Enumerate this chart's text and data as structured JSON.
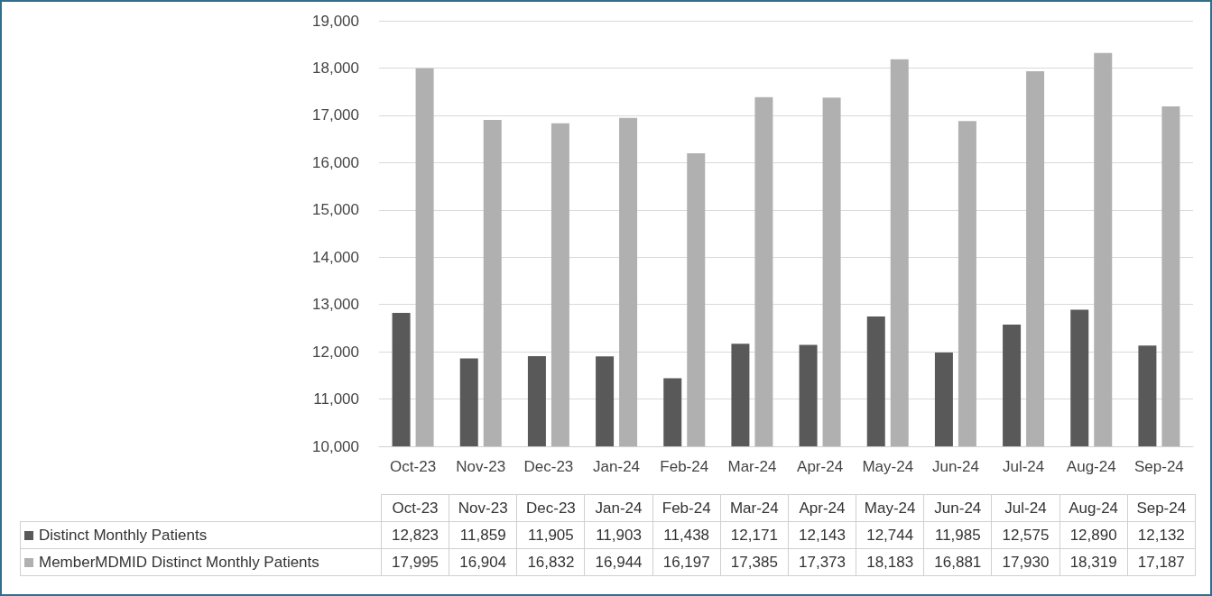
{
  "chart_data": {
    "type": "bar",
    "categories": [
      "Oct-23",
      "Nov-23",
      "Dec-23",
      "Jan-24",
      "Feb-24",
      "Mar-24",
      "Apr-24",
      "May-24",
      "Jun-24",
      "Jul-24",
      "Aug-24",
      "Sep-24"
    ],
    "series": [
      {
        "name": "Distinct Monthly Patients",
        "color": "#595959",
        "values": [
          12823,
          11859,
          11905,
          11903,
          11438,
          12171,
          12143,
          12744,
          11985,
          12575,
          12890,
          12132
        ],
        "value_labels": [
          "12,823",
          "11,859",
          "11,905",
          "11,903",
          "11,438",
          "12,171",
          "12,143",
          "12,744",
          "11,985",
          "12,575",
          "12,890",
          "12,132"
        ]
      },
      {
        "name": "MemberMDMID Distinct Monthly Patients",
        "color": "#b0b0b0",
        "values": [
          17995,
          16904,
          16832,
          16944,
          16197,
          17385,
          17373,
          18183,
          16881,
          17930,
          18319,
          17187
        ],
        "value_labels": [
          "17,995",
          "16,904",
          "16,832",
          "16,944",
          "16,197",
          "17,385",
          "17,373",
          "18,183",
          "16,881",
          "17,930",
          "18,319",
          "17,187"
        ]
      }
    ],
    "ylim": [
      10000,
      19000
    ],
    "yticks": [
      {
        "value": 10000,
        "label": "10,000"
      },
      {
        "value": 11000,
        "label": "11,000"
      },
      {
        "value": 12000,
        "label": "12,000"
      },
      {
        "value": 13000,
        "label": "13,000"
      },
      {
        "value": 14000,
        "label": "14,000"
      },
      {
        "value": 15000,
        "label": "15,000"
      },
      {
        "value": 16000,
        "label": "16,000"
      },
      {
        "value": 17000,
        "label": "17,000"
      },
      {
        "value": 18000,
        "label": "18,000"
      },
      {
        "value": 19000,
        "label": "19,000"
      }
    ],
    "grid": "y",
    "legend": "bottom"
  }
}
